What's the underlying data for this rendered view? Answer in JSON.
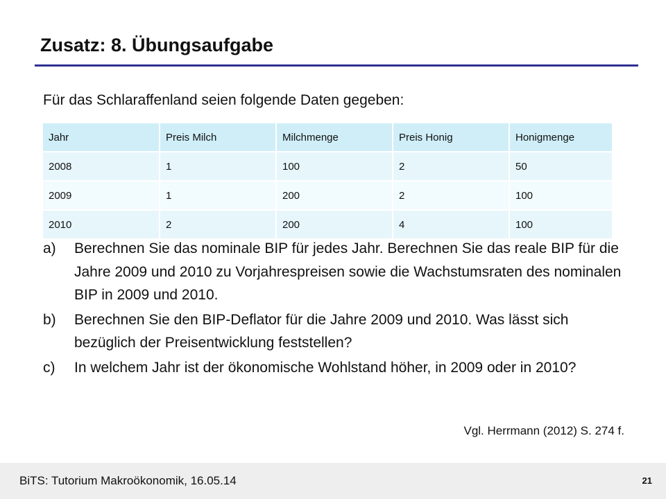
{
  "slide": {
    "title": "Zusatz: 8. Übungsaufgabe",
    "intro": "Für das Schlaraffenland seien folgende Daten gegeben:",
    "accent_color": "#2e3192",
    "table": {
      "headers": [
        "Jahr",
        "Preis Milch",
        "Milchmenge",
        "Preis Honig",
        "Honigmenge"
      ],
      "rows": [
        [
          "2008",
          "1",
          "100",
          "2",
          "50"
        ],
        [
          "2009",
          "1",
          "200",
          "2",
          "100"
        ],
        [
          "2010",
          "2",
          "200",
          "4",
          "100"
        ]
      ]
    },
    "tasks": [
      {
        "marker": "a)",
        "text": "Berechnen Sie das nominale BIP für jedes Jahr. Berechnen Sie das reale BIP für die Jahre 2009 und 2010 zu Vorjahrespreisen sowie die Wachstumsraten des nominalen BIP in 2009 und 2010."
      },
      {
        "marker": "b)",
        "text": "Berechnen Sie den BIP-Deflator für die Jahre 2009 und 2010. Was lässt sich bezüglich der Preisentwicklung feststellen?"
      },
      {
        "marker": "c)",
        "text": "In welchem Jahr ist der ökonomische Wohlstand höher, in 2009 oder in 2010?"
      }
    ],
    "source": "Vgl. Herrmann (2012) S. 274 f.",
    "footer": {
      "text": "BiTS: Tutorium Makroökonomik, 16.05.14",
      "page_number": "21"
    }
  }
}
